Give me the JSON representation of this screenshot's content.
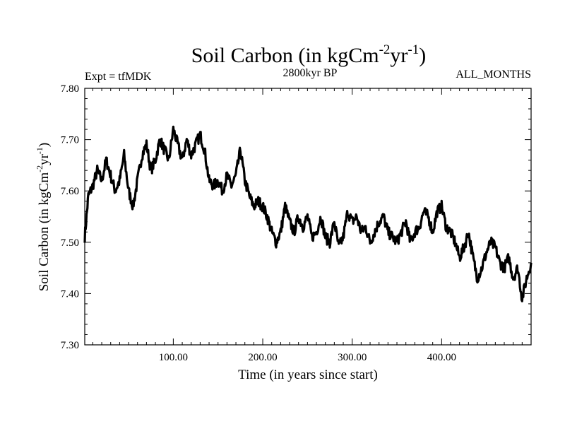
{
  "chart_data": {
    "type": "line",
    "title_main": "Soil Carbon (in kgCm",
    "title_exp1": "-2",
    "title_mid": "yr",
    "title_exp2": "-1",
    "title_end": ")",
    "expt_label": "Expt = tfMDK",
    "period_label": "2800kyr BP",
    "months_label": "ALL_MONTHS",
    "xlabel": "Time (in years since start)",
    "ylabel_main": "Soil Carbon (in kgCm",
    "ylabel_exp1": "-2",
    "ylabel_mid": "yr",
    "ylabel_exp2": "-1",
    "ylabel_end": ")",
    "xlim": [
      1,
      500
    ],
    "ylim": [
      7.3,
      7.8
    ],
    "xticks": [
      100,
      200,
      300,
      400
    ],
    "xtick_labels": [
      "100.00",
      "200.00",
      "300.00",
      "400.00"
    ],
    "yticks": [
      7.3,
      7.4,
      7.5,
      7.6,
      7.7,
      7.8
    ],
    "ytick_labels": [
      "7.30",
      "7.40",
      "7.50",
      "7.60",
      "7.70",
      "7.80"
    ],
    "series": [
      {
        "name": "Soil Carbon",
        "color": "#000000",
        "x": [
          1,
          5,
          10,
          15,
          20,
          25,
          30,
          35,
          40,
          45,
          50,
          55,
          60,
          65,
          70,
          75,
          80,
          85,
          90,
          95,
          100,
          105,
          110,
          115,
          120,
          125,
          130,
          135,
          140,
          145,
          150,
          155,
          160,
          165,
          170,
          175,
          180,
          185,
          190,
          195,
          200,
          205,
          210,
          215,
          220,
          225,
          230,
          235,
          240,
          245,
          250,
          255,
          260,
          265,
          270,
          275,
          280,
          285,
          290,
          295,
          300,
          305,
          310,
          315,
          320,
          325,
          330,
          335,
          340,
          345,
          350,
          355,
          360,
          365,
          370,
          375,
          380,
          385,
          390,
          395,
          400,
          405,
          410,
          415,
          420,
          425,
          430,
          435,
          440,
          445,
          450,
          455,
          460,
          465,
          470,
          475,
          480,
          485,
          490,
          495,
          500
        ],
        "y": [
          7.51,
          7.59,
          7.61,
          7.64,
          7.62,
          7.66,
          7.63,
          7.6,
          7.62,
          7.67,
          7.6,
          7.57,
          7.62,
          7.67,
          7.69,
          7.64,
          7.66,
          7.7,
          7.68,
          7.66,
          7.72,
          7.69,
          7.66,
          7.7,
          7.67,
          7.69,
          7.71,
          7.68,
          7.62,
          7.61,
          7.62,
          7.6,
          7.63,
          7.61,
          7.63,
          7.68,
          7.62,
          7.59,
          7.57,
          7.58,
          7.57,
          7.55,
          7.52,
          7.5,
          7.52,
          7.57,
          7.54,
          7.52,
          7.55,
          7.53,
          7.55,
          7.51,
          7.52,
          7.55,
          7.51,
          7.5,
          7.54,
          7.49,
          7.51,
          7.56,
          7.54,
          7.55,
          7.52,
          7.53,
          7.5,
          7.52,
          7.54,
          7.55,
          7.52,
          7.51,
          7.5,
          7.52,
          7.54,
          7.5,
          7.52,
          7.53,
          7.56,
          7.55,
          7.52,
          7.56,
          7.57,
          7.53,
          7.52,
          7.5,
          7.47,
          7.49,
          7.52,
          7.47,
          7.43,
          7.45,
          7.48,
          7.5,
          7.49,
          7.46,
          7.45,
          7.47,
          7.43,
          7.45,
          7.39,
          7.43,
          7.46
        ]
      }
    ]
  }
}
